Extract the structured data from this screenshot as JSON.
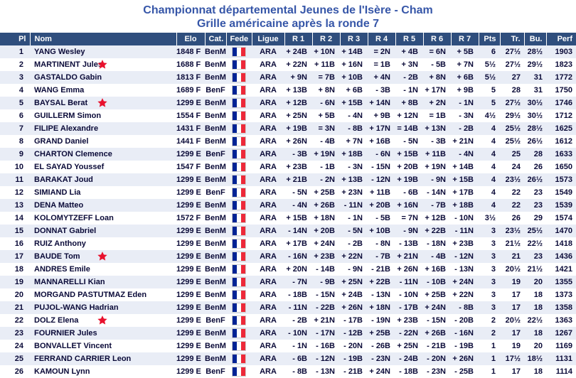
{
  "title": {
    "line1": "Championnat départemental Jeunes de l'Isère - Cham",
    "line2": "Grille américaine après la ronde 7"
  },
  "colors": {
    "title_color": "#3656a8",
    "header_bg": "#2f4e7d",
    "header_text": "#ffffff",
    "body_text": "#0a0a38",
    "odd_row_bg": "#e9edf6",
    "even_row_bg": "#ffffff",
    "star_red": "#e8112d",
    "flag_blue": "#002395",
    "flag_red": "#ed2939"
  },
  "icons": {
    "star": "red-star",
    "fede_flag": "france-flag"
  },
  "table": {
    "headers": [
      "Pl",
      "Nom",
      "Elo",
      "Cat.",
      "Fede",
      "Ligue",
      "R 1",
      "R 2",
      "R 3",
      "R 4",
      "R 5",
      "R 6",
      "R 7",
      "Pts",
      "Tr.",
      "Bu.",
      "Perf"
    ],
    "rows": [
      {
        "pl": "1",
        "nom": "YANG Wesley",
        "star": false,
        "elo": "1848 F",
        "cat": "BenM",
        "ligue": "ARA",
        "rounds": [
          "+ 24B",
          "+ 10N",
          "+ 14B",
          "= 2N",
          "+ 4B",
          "= 6N",
          "+ 5B"
        ],
        "pts": "6",
        "tr": "27½",
        "bu": "28½",
        "perf": "1903"
      },
      {
        "pl": "2",
        "nom": "MARTINENT Jules",
        "star": true,
        "elo": "1688 F",
        "cat": "BenM",
        "ligue": "ARA",
        "rounds": [
          "+ 22N",
          "+ 11B",
          "+ 16N",
          "= 1B",
          "+ 3N",
          "- 5B",
          "+ 7N"
        ],
        "pts": "5½",
        "tr": "27½",
        "bu": "29½",
        "perf": "1823"
      },
      {
        "pl": "3",
        "nom": "GASTALDO Gabin",
        "star": false,
        "elo": "1813 F",
        "cat": "BenM",
        "ligue": "ARA",
        "rounds": [
          "+ 9N",
          "= 7B",
          "+ 10B",
          "+ 4N",
          "- 2B",
          "+ 8N",
          "+ 6B"
        ],
        "pts": "5½",
        "tr": "27",
        "bu": "31",
        "perf": "1772"
      },
      {
        "pl": "4",
        "nom": "WANG Emma",
        "star": false,
        "elo": "1689 F",
        "cat": "BenF",
        "ligue": "ARA",
        "rounds": [
          "+ 13B",
          "+ 8N",
          "+ 6B",
          "- 3B",
          "- 1N",
          "+ 17N",
          "+ 9B"
        ],
        "pts": "5",
        "tr": "28",
        "bu": "31",
        "perf": "1750"
      },
      {
        "pl": "5",
        "nom": "BAYSAL Berat",
        "star": true,
        "elo": "1299 E",
        "cat": "BenM",
        "ligue": "ARA",
        "rounds": [
          "+ 12B",
          "- 6N",
          "+ 15B",
          "+ 14N",
          "+ 8B",
          "+ 2N",
          "- 1N"
        ],
        "pts": "5",
        "tr": "27½",
        "bu": "30½",
        "perf": "1746"
      },
      {
        "pl": "6",
        "nom": "GUILLERM Simon",
        "star": false,
        "elo": "1554 F",
        "cat": "BenM",
        "ligue": "ARA",
        "rounds": [
          "+ 25N",
          "+ 5B",
          "- 4N",
          "+ 9B",
          "+ 12N",
          "= 1B",
          "- 3N"
        ],
        "pts": "4½",
        "tr": "29½",
        "bu": "30½",
        "perf": "1712"
      },
      {
        "pl": "7",
        "nom": "FILIPE Alexandre",
        "star": false,
        "elo": "1431 F",
        "cat": "BenM",
        "ligue": "ARA",
        "rounds": [
          "+ 19B",
          "= 3N",
          "- 8B",
          "+ 17N",
          "= 14B",
          "+ 13N",
          "- 2B"
        ],
        "pts": "4",
        "tr": "25½",
        "bu": "28½",
        "perf": "1625"
      },
      {
        "pl": "8",
        "nom": "GRAND Daniel",
        "star": false,
        "elo": "1441 F",
        "cat": "BenM",
        "ligue": "ARA",
        "rounds": [
          "+ 26N",
          "- 4B",
          "+ 7N",
          "+ 16B",
          "- 5N",
          "- 3B",
          "+ 21N"
        ],
        "pts": "4",
        "tr": "25½",
        "bu": "26½",
        "perf": "1612"
      },
      {
        "pl": "9",
        "nom": "CHARTON Clemence",
        "star": false,
        "elo": "1299 E",
        "cat": "BenF",
        "ligue": "ARA",
        "rounds": [
          "- 3B",
          "+ 19N",
          "+ 18B",
          "- 6N",
          "+ 15B",
          "+ 11B",
          "- 4N"
        ],
        "pts": "4",
        "tr": "25",
        "bu": "28",
        "perf": "1633"
      },
      {
        "pl": "10",
        "nom": "EL SAYAD Youssef",
        "star": false,
        "elo": "1547 F",
        "cat": "BenM",
        "ligue": "ARA",
        "rounds": [
          "+ 23B",
          "- 1B",
          "- 3N",
          "- 15N",
          "+ 20B",
          "+ 19N",
          "+ 14B"
        ],
        "pts": "4",
        "tr": "24",
        "bu": "26",
        "perf": "1650"
      },
      {
        "pl": "11",
        "nom": "BARAKAT Joud",
        "star": false,
        "elo": "1299 E",
        "cat": "BenM",
        "ligue": "ARA",
        "rounds": [
          "+ 21B",
          "- 2N",
          "+ 13B",
          "- 12N",
          "+ 19B",
          "- 9N",
          "+ 15B"
        ],
        "pts": "4",
        "tr": "23½",
        "bu": "26½",
        "perf": "1573"
      },
      {
        "pl": "12",
        "nom": "SIMIAND Lia",
        "star": false,
        "elo": "1299 E",
        "cat": "BenF",
        "ligue": "ARA",
        "rounds": [
          "- 5N",
          "+ 25B",
          "+ 23N",
          "+ 11B",
          "- 6B",
          "- 14N",
          "+ 17B"
        ],
        "pts": "4",
        "tr": "22",
        "bu": "23",
        "perf": "1549"
      },
      {
        "pl": "13",
        "nom": "DENA Matteo",
        "star": false,
        "elo": "1299 E",
        "cat": "BenM",
        "ligue": "ARA",
        "rounds": [
          "- 4N",
          "+ 26B",
          "- 11N",
          "+ 20B",
          "+ 16N",
          "- 7B",
          "+ 18B"
        ],
        "pts": "4",
        "tr": "22",
        "bu": "23",
        "perf": "1539"
      },
      {
        "pl": "14",
        "nom": "KOLOMYTZEFF Loan",
        "star": false,
        "elo": "1572 F",
        "cat": "BenM",
        "ligue": "ARA",
        "rounds": [
          "+ 15B",
          "+ 18N",
          "- 1N",
          "- 5B",
          "= 7N",
          "+ 12B",
          "- 10N"
        ],
        "pts": "3½",
        "tr": "26",
        "bu": "29",
        "perf": "1574"
      },
      {
        "pl": "15",
        "nom": "DONNAT Gabriel",
        "star": false,
        "elo": "1299 E",
        "cat": "BenM",
        "ligue": "ARA",
        "rounds": [
          "- 14N",
          "+ 20B",
          "- 5N",
          "+ 10B",
          "- 9N",
          "+ 22B",
          "- 11N"
        ],
        "pts": "3",
        "tr": "23½",
        "bu": "25½",
        "perf": "1470"
      },
      {
        "pl": "16",
        "nom": "RUIZ Anthony",
        "star": false,
        "elo": "1299 E",
        "cat": "BenM",
        "ligue": "ARA",
        "rounds": [
          "+ 17B",
          "+ 24N",
          "- 2B",
          "- 8N",
          "- 13B",
          "- 18N",
          "+ 23B"
        ],
        "pts": "3",
        "tr": "21½",
        "bu": "22½",
        "perf": "1418"
      },
      {
        "pl": "17",
        "nom": "BAUDE Tom",
        "star": true,
        "elo": "1299 E",
        "cat": "BenM",
        "ligue": "ARA",
        "rounds": [
          "- 16N",
          "+ 23B",
          "+ 22N",
          "- 7B",
          "+ 21N",
          "- 4B",
          "- 12N"
        ],
        "pts": "3",
        "tr": "21",
        "bu": "23",
        "perf": "1436"
      },
      {
        "pl": "18",
        "nom": "ANDRES Emile",
        "star": false,
        "elo": "1299 E",
        "cat": "BenM",
        "ligue": "ARA",
        "rounds": [
          "+ 20N",
          "- 14B",
          "- 9N",
          "- 21B",
          "+ 26N",
          "+ 16B",
          "- 13N"
        ],
        "pts": "3",
        "tr": "20½",
        "bu": "21½",
        "perf": "1421"
      },
      {
        "pl": "19",
        "nom": "MANNARELLI Kian",
        "star": false,
        "elo": "1299 E",
        "cat": "BenM",
        "ligue": "ARA",
        "rounds": [
          "- 7N",
          "- 9B",
          "+ 25N",
          "+ 22B",
          "- 11N",
          "- 10B",
          "+ 24N"
        ],
        "pts": "3",
        "tr": "19",
        "bu": "20",
        "perf": "1355"
      },
      {
        "pl": "20",
        "nom": "MORGAND PASTUTMAZ Eden",
        "star": false,
        "elo": "1299 E",
        "cat": "BenM",
        "ligue": "ARA",
        "rounds": [
          "- 18B",
          "- 15N",
          "+ 24B",
          "- 13N",
          "- 10N",
          "+ 25B",
          "+ 22N"
        ],
        "pts": "3",
        "tr": "17",
        "bu": "18",
        "perf": "1373"
      },
      {
        "pl": "21",
        "nom": "PUJOL-WANG Hadrian",
        "star": false,
        "elo": "1299 E",
        "cat": "BenM",
        "ligue": "ARA",
        "rounds": [
          "- 11N",
          "- 22B",
          "+ 26N",
          "+ 18N",
          "- 17B",
          "+ 24N",
          "- 8B"
        ],
        "pts": "3",
        "tr": "17",
        "bu": "18",
        "perf": "1358"
      },
      {
        "pl": "22",
        "nom": "DOLZ Elena",
        "star": true,
        "elo": "1299 E",
        "cat": "BenF",
        "ligue": "ARA",
        "rounds": [
          "- 2B",
          "+ 21N",
          "- 17B",
          "- 19N",
          "+ 23B",
          "- 15N",
          "- 20B"
        ],
        "pts": "2",
        "tr": "20½",
        "bu": "22½",
        "perf": "1363"
      },
      {
        "pl": "23",
        "nom": "FOURNIER Jules",
        "star": false,
        "elo": "1299 E",
        "cat": "BenM",
        "ligue": "ARA",
        "rounds": [
          "- 10N",
          "- 17N",
          "- 12B",
          "+ 25B",
          "- 22N",
          "+ 26B",
          "- 16N"
        ],
        "pts": "2",
        "tr": "17",
        "bu": "18",
        "perf": "1267"
      },
      {
        "pl": "24",
        "nom": "BONVALLET Vincent",
        "star": false,
        "elo": "1299 E",
        "cat": "BenM",
        "ligue": "ARA",
        "rounds": [
          "- 1N",
          "- 16B",
          "- 20N",
          "- 26B",
          "+ 25N",
          "- 21B",
          "- 19B"
        ],
        "pts": "1",
        "tr": "19",
        "bu": "20",
        "perf": "1169"
      },
      {
        "pl": "25",
        "nom": "FERRAND CARRIER Leon",
        "star": false,
        "elo": "1299 E",
        "cat": "BenM",
        "ligue": "ARA",
        "rounds": [
          "- 6B",
          "- 12N",
          "- 19B",
          "- 23N",
          "- 24B",
          "- 20N",
          "+ 26N"
        ],
        "pts": "1",
        "tr": "17½",
        "bu": "18½",
        "perf": "1131"
      },
      {
        "pl": "26",
        "nom": "KAMOUN Lynn",
        "star": false,
        "elo": "1299 E",
        "cat": "BenF",
        "ligue": "ARA",
        "rounds": [
          "- 8B",
          "- 13N",
          "- 21B",
          "+ 24N",
          "- 18B",
          "- 23N",
          "- 25B"
        ],
        "pts": "1",
        "tr": "17",
        "bu": "18",
        "perf": "1114"
      }
    ]
  }
}
